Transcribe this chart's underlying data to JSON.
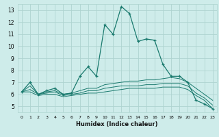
{
  "xlabel": "Humidex (Indice chaleur)",
  "bg_color": "#ceecea",
  "grid_color": "#aed4d0",
  "line_color": "#1a7a6e",
  "xlim": [
    -0.5,
    23.5
  ],
  "ylim": [
    4.5,
    13.5
  ],
  "xticks": [
    0,
    1,
    2,
    3,
    4,
    5,
    6,
    7,
    8,
    9,
    10,
    11,
    12,
    13,
    14,
    15,
    16,
    17,
    18,
    19,
    20,
    21,
    22,
    23
  ],
  "yticks": [
    5,
    6,
    7,
    8,
    9,
    10,
    11,
    12,
    13
  ],
  "lines": [
    {
      "x": [
        0,
        1,
        2,
        3,
        4,
        5,
        6,
        7,
        8,
        9,
        10,
        11,
        12,
        13,
        14,
        15,
        16,
        17,
        18,
        19,
        20,
        21,
        22,
        23
      ],
      "y": [
        6.2,
        7.0,
        6.0,
        6.3,
        6.5,
        6.0,
        6.1,
        7.5,
        8.3,
        7.5,
        11.8,
        11.0,
        13.3,
        12.7,
        10.4,
        10.6,
        10.5,
        8.5,
        7.5,
        7.5,
        7.0,
        5.5,
        5.2,
        4.8
      ],
      "marker": true
    },
    {
      "x": [
        0,
        1,
        2,
        3,
        4,
        5,
        6,
        7,
        8,
        9,
        10,
        11,
        12,
        13,
        14,
        15,
        16,
        17,
        18,
        19,
        20,
        21,
        22,
        23
      ],
      "y": [
        6.2,
        6.7,
        6.0,
        6.2,
        6.3,
        6.0,
        6.1,
        6.3,
        6.5,
        6.5,
        6.8,
        6.9,
        7.0,
        7.1,
        7.1,
        7.2,
        7.2,
        7.3,
        7.4,
        7.3,
        7.0,
        6.5,
        6.0,
        5.5
      ],
      "marker": false
    },
    {
      "x": [
        0,
        1,
        2,
        3,
        4,
        5,
        6,
        7,
        8,
        9,
        10,
        11,
        12,
        13,
        14,
        15,
        16,
        17,
        18,
        19,
        20,
        21,
        22,
        23
      ],
      "y": [
        6.2,
        6.4,
        6.0,
        6.1,
        6.2,
        5.9,
        6.0,
        6.1,
        6.3,
        6.3,
        6.5,
        6.6,
        6.7,
        6.7,
        6.7,
        6.8,
        6.8,
        6.9,
        6.9,
        6.9,
        6.7,
        6.1,
        5.7,
        5.1
      ],
      "marker": false
    },
    {
      "x": [
        0,
        1,
        2,
        3,
        4,
        5,
        6,
        7,
        8,
        9,
        10,
        11,
        12,
        13,
        14,
        15,
        16,
        17,
        18,
        19,
        20,
        21,
        22,
        23
      ],
      "y": [
        6.2,
        6.2,
        5.9,
        6.0,
        6.0,
        5.8,
        5.9,
        6.0,
        6.1,
        6.1,
        6.2,
        6.3,
        6.4,
        6.5,
        6.5,
        6.5,
        6.5,
        6.6,
        6.6,
        6.6,
        6.4,
        5.9,
        5.5,
        4.8
      ],
      "marker": false
    }
  ]
}
